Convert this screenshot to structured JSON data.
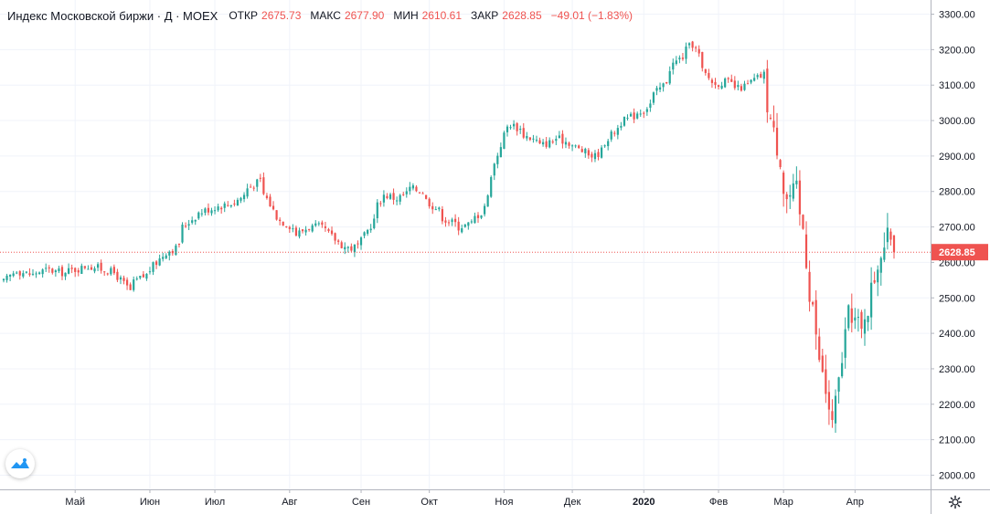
{
  "legend": {
    "title": "Индекс Московской биржи · Д · MOEX",
    "open_label": "ОТКР",
    "open_value": "2675.73",
    "high_label": "МАКС",
    "high_value": "2677.90",
    "low_label": "МИН",
    "low_value": "2610.61",
    "close_label": "ЗАКР",
    "close_value": "2628.85",
    "change": "−49.01 (−1.83%)"
  },
  "icons": {
    "logo": "tradingview-logo-icon",
    "settings": "gear-icon"
  },
  "colors": {
    "up": "#26a69a",
    "down": "#ef5350",
    "grid": "#f0f3fa",
    "axis_text": "#131722"
  },
  "chart_data": {
    "type": "candlestick",
    "ylim": [
      1960,
      3340
    ],
    "yticks": [
      2000,
      2100,
      2200,
      2300,
      2400,
      2500,
      2600,
      2700,
      2800,
      2900,
      3000,
      3100,
      3200,
      3300
    ],
    "ytick_labels": [
      "2000.00",
      "2100.00",
      "2200.00",
      "2300.00",
      "2400.00",
      "2500.00",
      "2600.00",
      "2700.00",
      "2800.00",
      "2900.00",
      "3000.00",
      "3100.00",
      "3200.00",
      "3300.00"
    ],
    "xticks": [
      {
        "label": "Май",
        "date": "2019-05-01"
      },
      {
        "label": "Июн",
        "date": "2019-06-01"
      },
      {
        "label": "Июл",
        "date": "2019-07-01"
      },
      {
        "label": "Авг",
        "date": "2019-08-01"
      },
      {
        "label": "Сен",
        "date": "2019-09-01"
      },
      {
        "label": "Окт",
        "date": "2019-10-01"
      },
      {
        "label": "Ноя",
        "date": "2019-11-01"
      },
      {
        "label": "Дек",
        "date": "2019-12-01"
      },
      {
        "label": "2020",
        "date": "2020-01-01",
        "bold": true
      },
      {
        "label": "Фев",
        "date": "2020-02-01"
      },
      {
        "label": "Мар",
        "date": "2020-03-01"
      },
      {
        "label": "Апр",
        "date": "2020-04-01"
      }
    ],
    "last_price": 2628.85,
    "last_price_label": "2628.85",
    "anchors": [
      [
        "2019-04-01",
        2545
      ],
      [
        "2019-04-05",
        2580
      ],
      [
        "2019-04-12",
        2565
      ],
      [
        "2019-04-19",
        2580
      ],
      [
        "2019-04-26",
        2570
      ],
      [
        "2019-05-06",
        2590
      ],
      [
        "2019-05-14",
        2580
      ],
      [
        "2019-05-20",
        2560
      ],
      [
        "2019-05-24",
        2520
      ],
      [
        "2019-05-28",
        2550
      ],
      [
        "2019-06-03",
        2580
      ],
      [
        "2019-06-07",
        2620
      ],
      [
        "2019-06-13",
        2640
      ],
      [
        "2019-06-17",
        2700
      ],
      [
        "2019-06-21",
        2730
      ],
      [
        "2019-06-27",
        2750
      ],
      [
        "2019-07-03",
        2760
      ],
      [
        "2019-07-09",
        2770
      ],
      [
        "2019-07-15",
        2810
      ],
      [
        "2019-07-19",
        2830
      ],
      [
        "2019-07-23",
        2780
      ],
      [
        "2019-07-26",
        2730
      ],
      [
        "2019-07-31",
        2710
      ],
      [
        "2019-08-05",
        2680
      ],
      [
        "2019-08-09",
        2700
      ],
      [
        "2019-08-14",
        2700
      ],
      [
        "2019-08-19",
        2680
      ],
      [
        "2019-08-23",
        2650
      ],
      [
        "2019-08-28",
        2640
      ],
      [
        "2019-09-02",
        2660
      ],
      [
        "2019-09-06",
        2720
      ],
      [
        "2019-09-11",
        2790
      ],
      [
        "2019-09-17",
        2780
      ],
      [
        "2019-09-23",
        2810
      ],
      [
        "2019-09-27",
        2800
      ],
      [
        "2019-10-02",
        2760
      ],
      [
        "2019-10-08",
        2720
      ],
      [
        "2019-10-14",
        2700
      ],
      [
        "2019-10-18",
        2710
      ],
      [
        "2019-10-23",
        2740
      ],
      [
        "2019-10-28",
        2850
      ],
      [
        "2019-11-01",
        2960
      ],
      [
        "2019-11-05",
        2990
      ],
      [
        "2019-11-11",
        2960
      ],
      [
        "2019-11-18",
        2930
      ],
      [
        "2019-11-25",
        2950
      ],
      [
        "2019-12-02",
        2930
      ],
      [
        "2019-12-06",
        2910
      ],
      [
        "2019-12-11",
        2900
      ],
      [
        "2019-12-16",
        2940
      ],
      [
        "2019-12-20",
        2980
      ],
      [
        "2019-12-26",
        3010
      ],
      [
        "2020-01-01",
        3030
      ],
      [
        "2020-01-09",
        3100
      ],
      [
        "2020-01-14",
        3160
      ],
      [
        "2020-01-20",
        3200
      ],
      [
        "2020-01-22",
        3215
      ],
      [
        "2020-01-27",
        3140
      ],
      [
        "2020-01-31",
        3100
      ],
      [
        "2020-02-05",
        3110
      ],
      [
        "2020-02-11",
        3090
      ],
      [
        "2020-02-17",
        3110
      ],
      [
        "2020-02-21",
        3130
      ],
      [
        "2020-02-24",
        3050
      ],
      [
        "2020-02-26",
        2960
      ],
      [
        "2020-02-28",
        2900
      ],
      [
        "2020-03-03",
        2780
      ],
      [
        "2020-03-06",
        2800
      ],
      [
        "2020-03-10",
        2700
      ],
      [
        "2020-03-12",
        2520
      ],
      [
        "2020-03-16",
        2380
      ],
      [
        "2020-03-18",
        2280
      ],
      [
        "2020-03-20",
        2190
      ],
      [
        "2020-03-23",
        2140
      ],
      [
        "2020-03-25",
        2260
      ],
      [
        "2020-03-27",
        2400
      ],
      [
        "2020-03-31",
        2460
      ],
      [
        "2020-04-03",
        2400
      ],
      [
        "2020-04-07",
        2480
      ],
      [
        "2020-04-10",
        2600
      ],
      [
        "2020-04-14",
        2650
      ],
      [
        "2020-04-16",
        2677
      ],
      [
        "2020-04-17",
        2628
      ]
    ],
    "last_candle": {
      "open": 2675.73,
      "high": 2677.9,
      "low": 2610.61,
      "close": 2628.85
    }
  }
}
